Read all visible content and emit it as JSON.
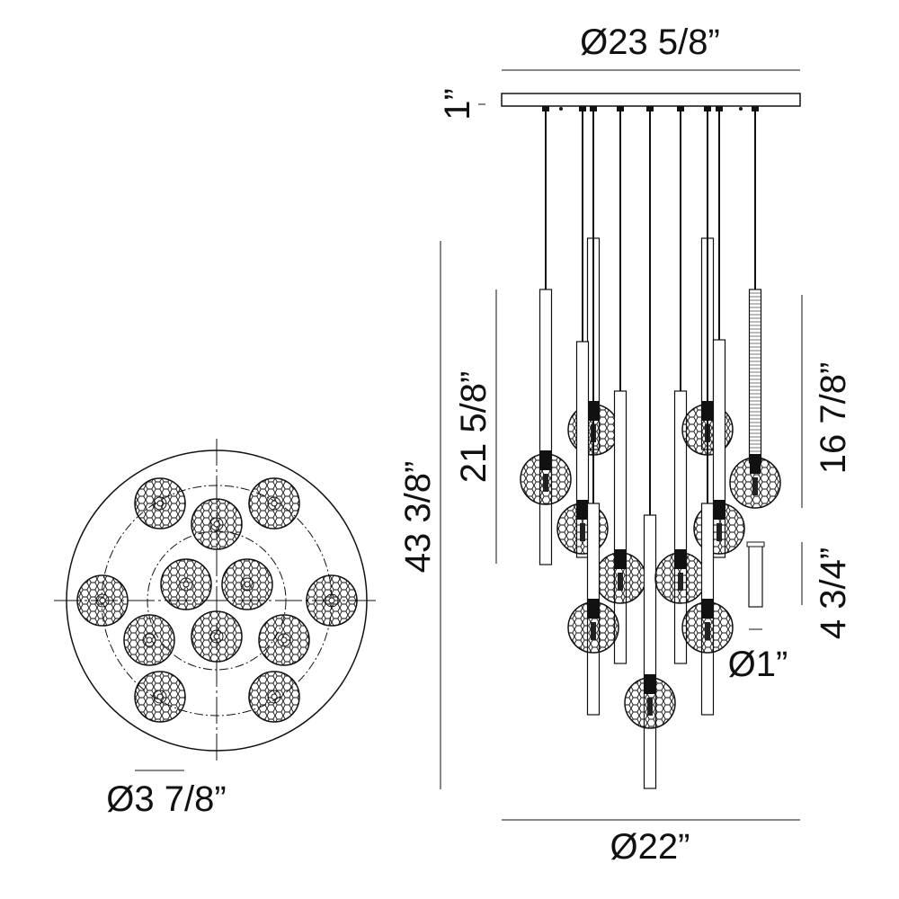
{
  "dimensions": {
    "canopy_diameter": "Ø23 5/8”",
    "canopy_height": "1”",
    "short_drop": "21 5/8”",
    "overall_height": "43 3/8”",
    "upper_drop": "16 7/8”",
    "tube_length": "4 3/4”",
    "tube_diameter": "Ø1”",
    "globe_diameter": "Ø3 7/8”",
    "fixture_diameter": "Ø22”"
  },
  "colors": {
    "line": "#111111",
    "background": "#ffffff"
  }
}
